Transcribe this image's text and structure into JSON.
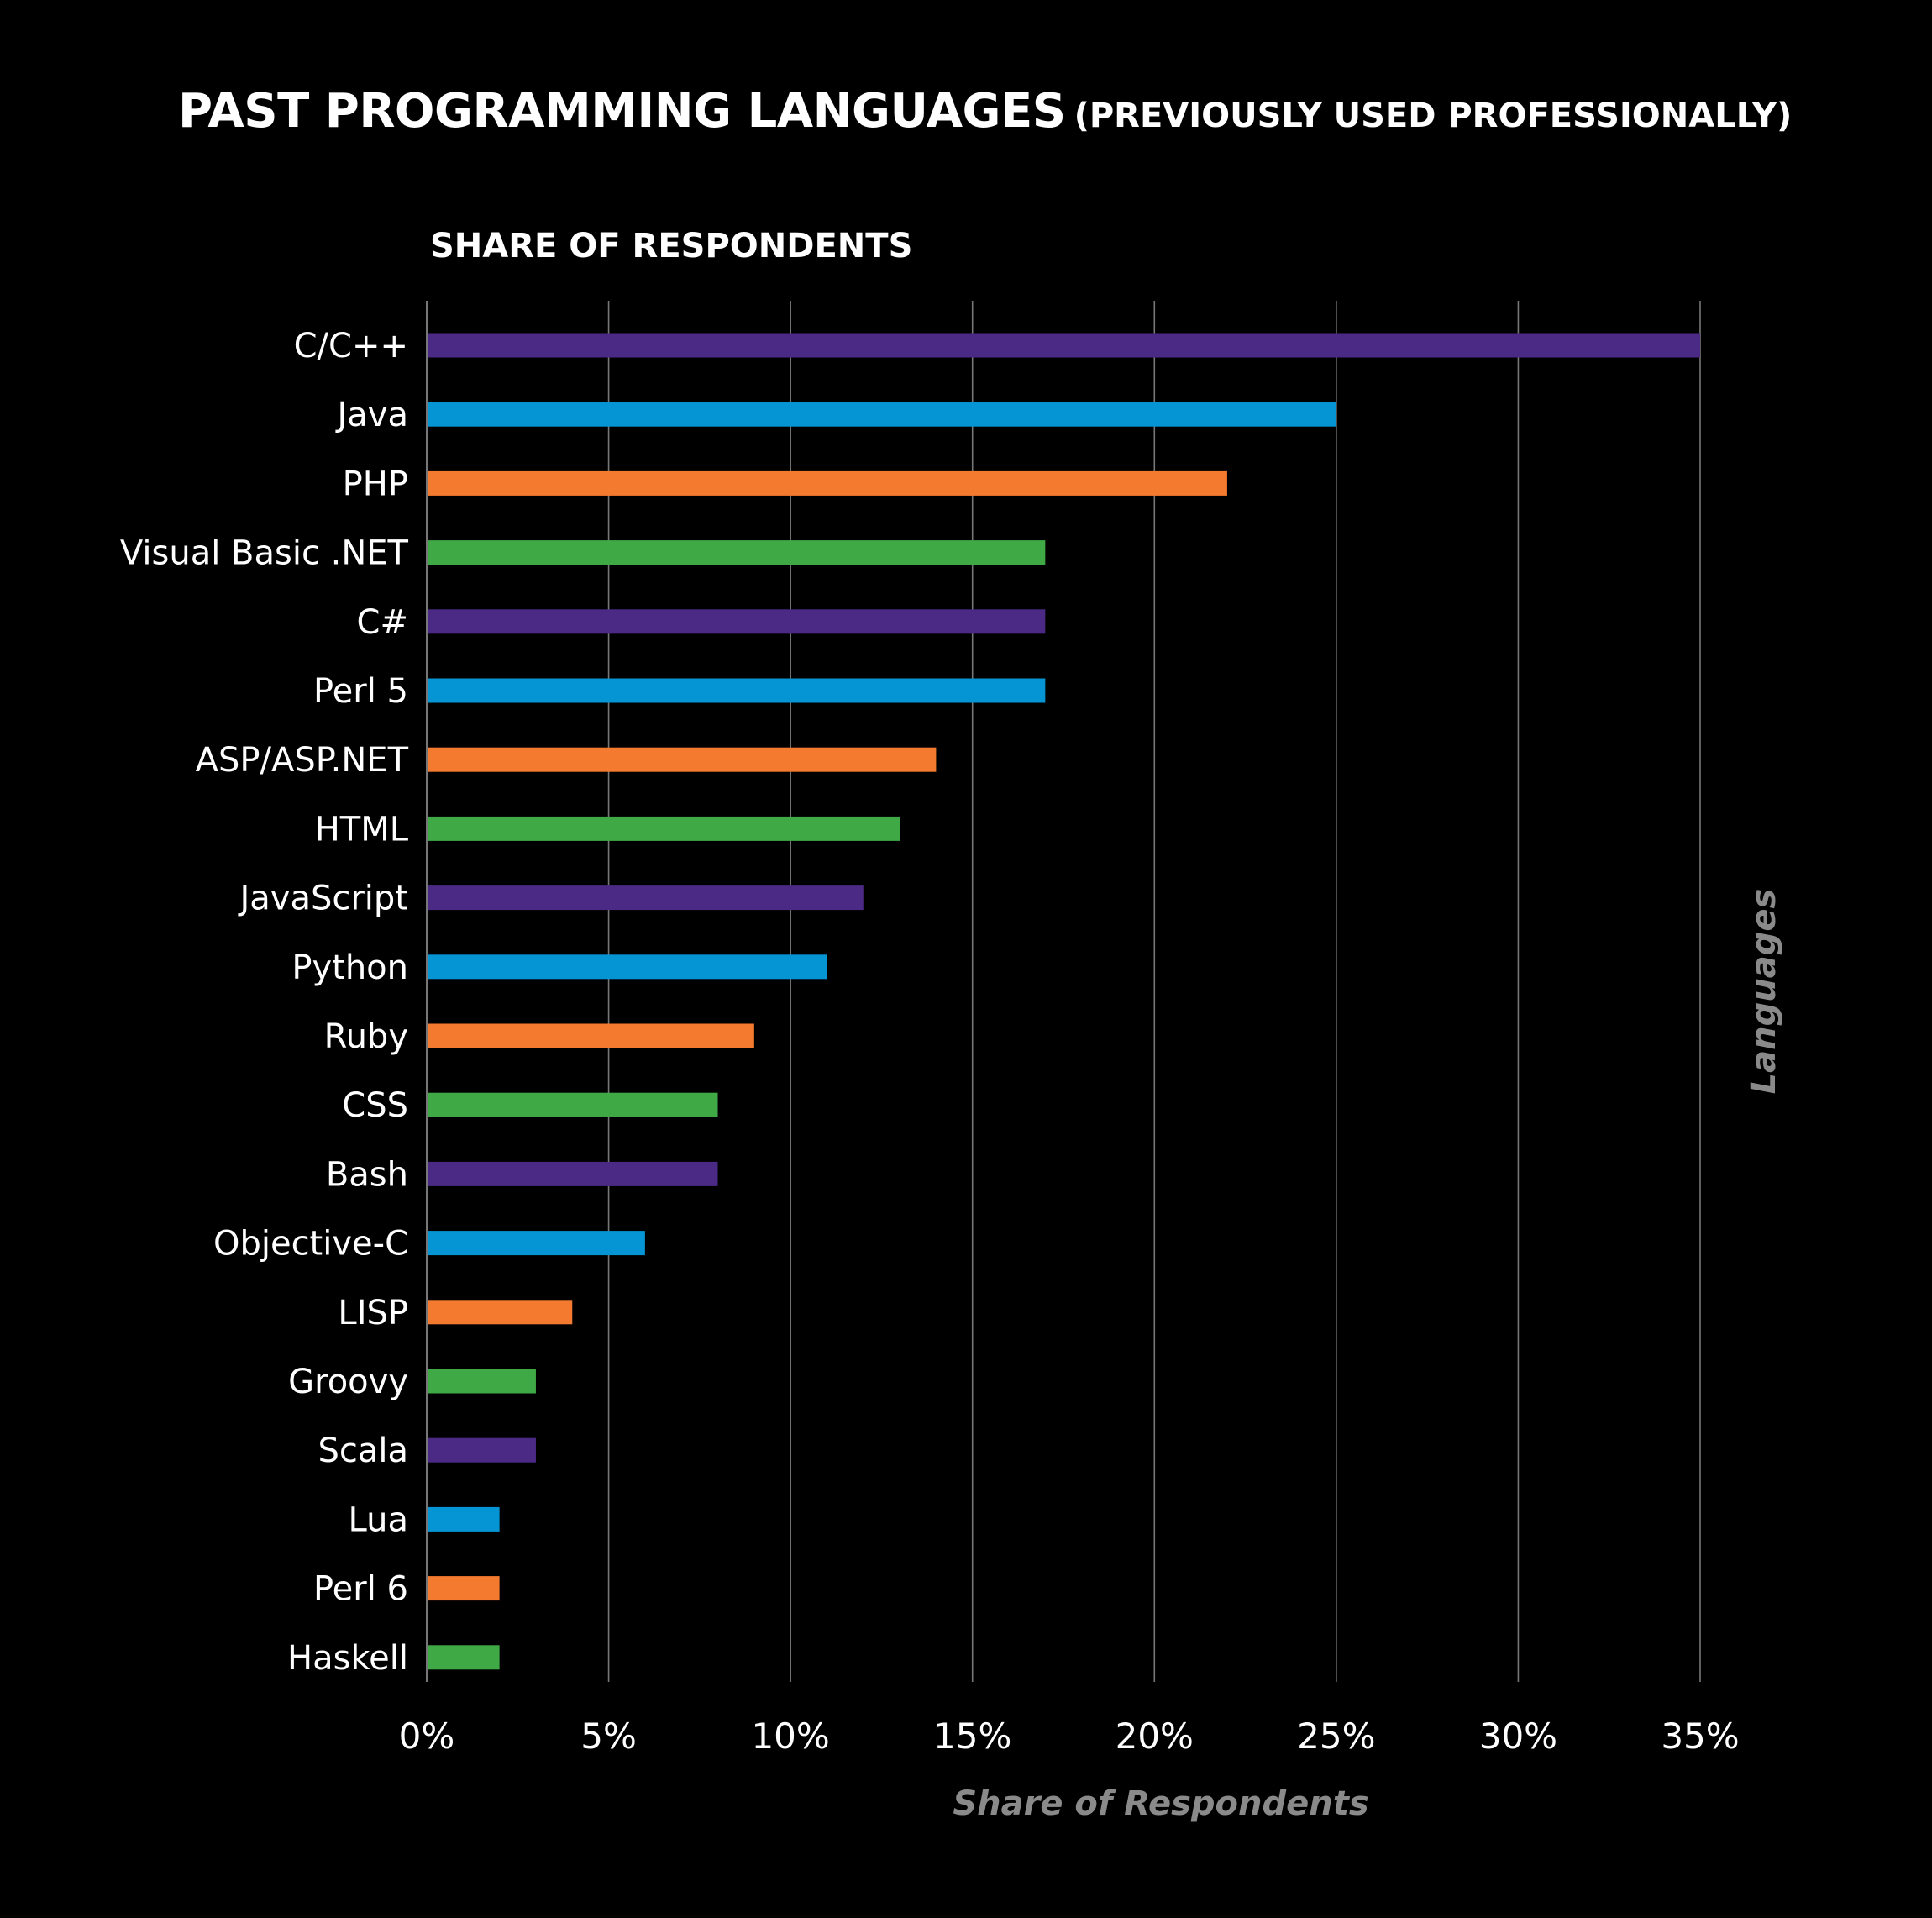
{
  "title": {
    "main": "PAST PROGRAMMING LANGUAGES",
    "sub": "(PREVIOUSLY USED PROFESSIONALLY)"
  },
  "subtitle": "SHARE OF RESPONDENTS",
  "chart_data": {
    "type": "bar",
    "orientation": "horizontal",
    "title": "PAST PROGRAMMING LANGUAGES (PREVIOUSLY USED PROFESSIONALLY)",
    "subtitle": "SHARE OF RESPONDENTS",
    "xlabel": "Share of Respondents",
    "ylabel": "Languages",
    "xlim": [
      0,
      35
    ],
    "x_ticks": [
      "0%",
      "5%",
      "10%",
      "15%",
      "20%",
      "25%",
      "30%",
      "35%"
    ],
    "grid": "vertical",
    "legend": "none",
    "categories": [
      "C/C++",
      "Java",
      "PHP",
      "Visual Basic .NET",
      "C#",
      "Perl 5",
      "ASP/ASP.NET",
      "HTML",
      "JavaScript",
      "Python",
      "Ruby",
      "CSS",
      "Bash",
      "Objective-C",
      "LISP",
      "Groovy",
      "Scala",
      "Lua",
      "Perl 6",
      "Haskell"
    ],
    "values": [
      35,
      25,
      22,
      17,
      17,
      17,
      14,
      13,
      12,
      11,
      9,
      8,
      8,
      6,
      4,
      3,
      3,
      2,
      2,
      2
    ],
    "bar_colors": [
      "#4b2a86",
      "#0595d4",
      "#f47a2f",
      "#3fa946",
      "#4b2a86",
      "#0595d4",
      "#f47a2f",
      "#3fa946",
      "#4b2a86",
      "#0595d4",
      "#f47a2f",
      "#3fa946",
      "#4b2a86",
      "#0595d4",
      "#f47a2f",
      "#3fa946",
      "#4b2a86",
      "#0595d4",
      "#f47a2f",
      "#3fa946"
    ],
    "unit": "%"
  },
  "colors": {
    "background": "#000000",
    "gridline": "#777777",
    "axis_label": "#8a8a8a",
    "text": "#ffffff"
  }
}
